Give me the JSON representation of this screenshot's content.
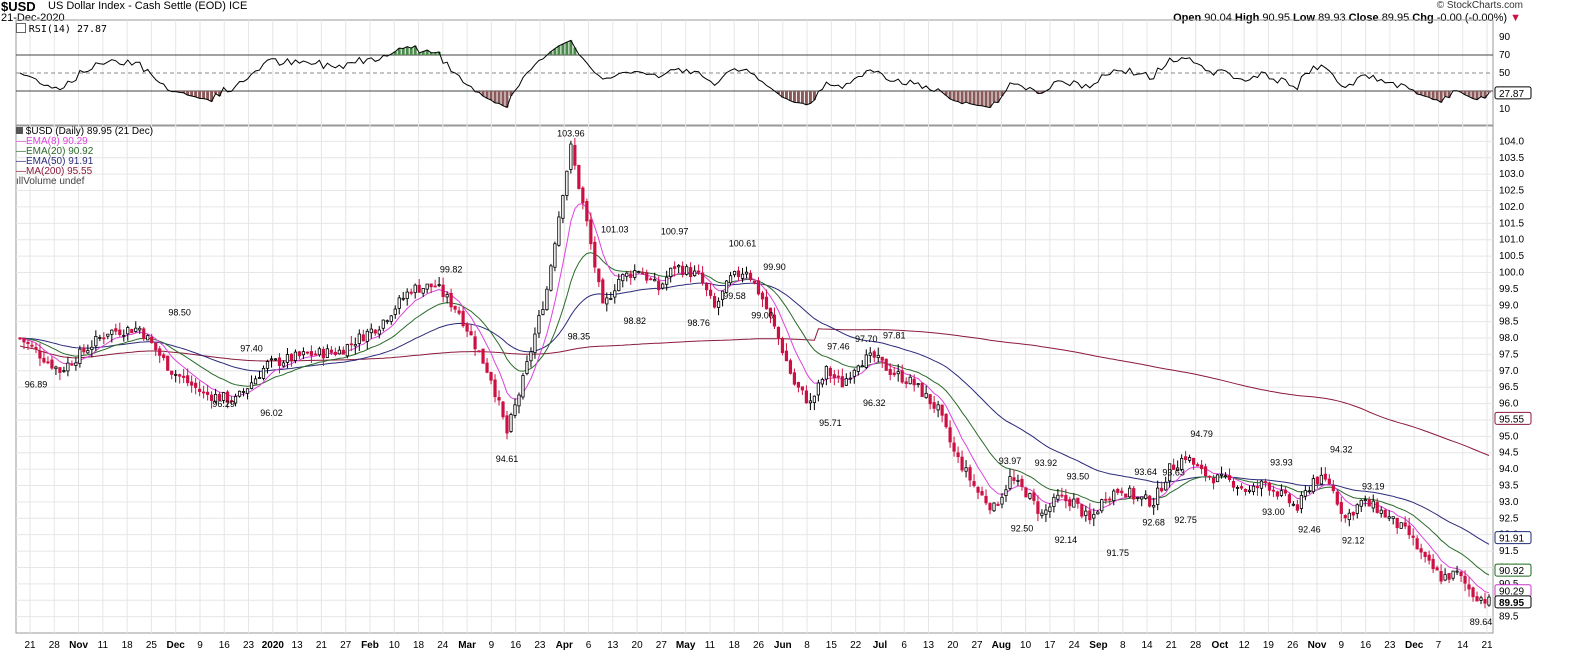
{
  "header": {
    "symbol": "$USD",
    "description": "US Dollar Index - Cash Settle (EOD)",
    "exchange": "ICE",
    "date": "21-Dec-2020",
    "brand": "© StockCharts.com",
    "open_label": "Open",
    "open": "90.04",
    "high_label": "High",
    "high": "90.95",
    "low_label": "Low",
    "low": "89.93",
    "close_label": "Close",
    "close": "89.95",
    "chg_label": "Chg",
    "chg": "-0.00 (-0.00%)"
  },
  "rsi_panel": {
    "label": "RSI(14) 27.87",
    "current": 27.87,
    "ticks": [
      10,
      30,
      50,
      70,
      90
    ],
    "levels": [
      30,
      50,
      70
    ],
    "colors": {
      "line": "#000000",
      "over": "#4a8a4a",
      "under": "#8a5a5a"
    }
  },
  "legend": {
    "main": "$USD (Daily) 89.95 (21 Dec)",
    "ema8": "EMA(8) 90.29",
    "ema20": "EMA(20) 90.92",
    "ema50": "EMA(50) 91.91",
    "ma200": "MA(200) 95.55",
    "volume": "Volume undef"
  },
  "chart_data": {
    "type": "candlestick",
    "ylim": [
      89.0,
      104.5
    ],
    "y_ticks": [
      "89.5",
      "90.0",
      "90.5",
      "91.0",
      "91.5",
      "92.0",
      "92.5",
      "93.0",
      "93.5",
      "94.0",
      "94.5",
      "95.0",
      "95.5",
      "96.0",
      "96.5",
      "97.0",
      "97.5",
      "98.0",
      "98.5",
      "99.0",
      "99.5",
      "100.0",
      "100.5",
      "101.0",
      "101.5",
      "102.0",
      "102.5",
      "103.0",
      "103.5",
      "104.0"
    ],
    "x_ticks": [
      "21",
      "28",
      "Nov",
      "11",
      "18",
      "25",
      "Dec",
      "9",
      "16",
      "23",
      "2020",
      "13",
      "21",
      "27",
      "Feb",
      "10",
      "18",
      "24",
      "Mar",
      "9",
      "16",
      "23",
      "Apr",
      "6",
      "13",
      "20",
      "27",
      "May",
      "11",
      "18",
      "26",
      "Jun",
      "8",
      "15",
      "22",
      "Jul",
      "6",
      "13",
      "20",
      "27",
      "Aug",
      "10",
      "17",
      "24",
      "Sep",
      "8",
      "14",
      "21",
      "28",
      "Oct",
      "12",
      "19",
      "26",
      "Nov",
      "9",
      "16",
      "23",
      "Dec",
      "7",
      "14",
      "21"
    ],
    "month_ticks": [
      "Nov",
      "Dec",
      "2020",
      "Feb",
      "Mar",
      "Apr",
      "May",
      "Jun",
      "Jul",
      "Aug",
      "Sep",
      "Oct",
      "Nov",
      "Dec"
    ],
    "price_keypoints": [
      [
        0,
        98.0
      ],
      [
        10,
        97.0
      ],
      [
        22,
        98.2
      ],
      [
        30,
        98.3
      ],
      [
        38,
        97.0
      ],
      [
        46,
        96.3
      ],
      [
        54,
        96.1
      ],
      [
        62,
        97.2
      ],
      [
        72,
        97.5
      ],
      [
        80,
        97.6
      ],
      [
        90,
        98.4
      ],
      [
        98,
        99.5
      ],
      [
        104,
        99.6
      ],
      [
        110,
        98.8
      ],
      [
        118,
        96.8
      ],
      [
        122,
        95.1
      ],
      [
        126,
        96.7
      ],
      [
        132,
        99.5
      ],
      [
        136,
        102.5
      ],
      [
        138,
        103.8
      ],
      [
        142,
        101.5
      ],
      [
        146,
        98.9
      ],
      [
        150,
        99.8
      ],
      [
        155,
        100.1
      ],
      [
        160,
        99.5
      ],
      [
        164,
        100.2
      ],
      [
        170,
        99.9
      ],
      [
        174,
        98.9
      ],
      [
        178,
        99.8
      ],
      [
        182,
        100.1
      ],
      [
        186,
        99.2
      ],
      [
        190,
        98.0
      ],
      [
        194,
        96.6
      ],
      [
        198,
        96.0
      ],
      [
        202,
        97.0
      ],
      [
        206,
        96.6
      ],
      [
        210,
        97.3
      ],
      [
        214,
        97.4
      ],
      [
        218,
        97.0
      ],
      [
        224,
        96.6
      ],
      [
        230,
        95.8
      ],
      [
        234,
        94.5
      ],
      [
        240,
        93.3
      ],
      [
        244,
        92.8
      ],
      [
        248,
        93.7
      ],
      [
        252,
        93.3
      ],
      [
        256,
        92.6
      ],
      [
        260,
        93.1
      ],
      [
        264,
        93.0
      ],
      [
        268,
        92.4
      ],
      [
        272,
        93.2
      ],
      [
        276,
        93.4
      ],
      [
        280,
        93.1
      ],
      [
        284,
        93.0
      ],
      [
        288,
        94.0
      ],
      [
        292,
        94.4
      ],
      [
        296,
        93.9
      ],
      [
        300,
        93.7
      ],
      [
        304,
        93.6
      ],
      [
        308,
        93.3
      ],
      [
        312,
        93.6
      ],
      [
        316,
        93.2
      ],
      [
        320,
        92.8
      ],
      [
        324,
        93.7
      ],
      [
        328,
        93.6
      ],
      [
        332,
        92.5
      ],
      [
        336,
        93.0
      ],
      [
        340,
        92.8
      ],
      [
        344,
        92.4
      ],
      [
        348,
        92.0
      ],
      [
        352,
        91.2
      ],
      [
        356,
        90.7
      ],
      [
        360,
        90.8
      ],
      [
        364,
        90.2
      ],
      [
        368,
        89.95
      ]
    ],
    "n_points": 369,
    "annotations": [
      {
        "text": "96.89",
        "i": 4,
        "v": 96.89,
        "pos": "below"
      },
      {
        "text": "98.50",
        "i": 40,
        "v": 98.5,
        "pos": "above"
      },
      {
        "text": "97.40",
        "i": 58,
        "v": 97.4,
        "pos": "above"
      },
      {
        "text": "96.29",
        "i": 51,
        "v": 96.29,
        "pos": "below"
      },
      {
        "text": "96.02",
        "i": 63,
        "v": 96.02,
        "pos": "below"
      },
      {
        "text": "99.82",
        "i": 108,
        "v": 99.82,
        "pos": "above"
      },
      {
        "text": "94.61",
        "i": 122,
        "v": 94.61,
        "pos": "below"
      },
      {
        "text": "103.96",
        "i": 138,
        "v": 103.96,
        "pos": "above"
      },
      {
        "text": "98.35",
        "i": 140,
        "v": 98.35,
        "pos": "below"
      },
      {
        "text": "101.03",
        "i": 149,
        "v": 101.03,
        "pos": "above"
      },
      {
        "text": "98.82",
        "i": 154,
        "v": 98.82,
        "pos": "below"
      },
      {
        "text": "100.97",
        "i": 164,
        "v": 100.97,
        "pos": "above"
      },
      {
        "text": "98.76",
        "i": 170,
        "v": 98.76,
        "pos": "below"
      },
      {
        "text": "100.61",
        "i": 181,
        "v": 100.61,
        "pos": "above"
      },
      {
        "text": "99.58",
        "i": 179,
        "v": 99.58,
        "pos": "below"
      },
      {
        "text": "99.90",
        "i": 189,
        "v": 99.9,
        "pos": "above"
      },
      {
        "text": "99.00",
        "i": 186,
        "v": 99.0,
        "pos": "below"
      },
      {
        "text": "97.70",
        "i": 212,
        "v": 97.7,
        "pos": "above"
      },
      {
        "text": "97.81",
        "i": 219,
        "v": 97.81,
        "pos": "above"
      },
      {
        "text": "97.46",
        "i": 205,
        "v": 97.46,
        "pos": "above"
      },
      {
        "text": "95.71",
        "i": 203,
        "v": 95.71,
        "pos": "below"
      },
      {
        "text": "96.32",
        "i": 214,
        "v": 96.32,
        "pos": "below"
      },
      {
        "text": "93.97",
        "i": 248,
        "v": 93.97,
        "pos": "above"
      },
      {
        "text": "93.92",
        "i": 257,
        "v": 93.92,
        "pos": "above"
      },
      {
        "text": "92.50",
        "i": 251,
        "v": 92.5,
        "pos": "below"
      },
      {
        "text": "93.50",
        "i": 265,
        "v": 93.5,
        "pos": "above"
      },
      {
        "text": "92.14",
        "i": 262,
        "v": 92.14,
        "pos": "below"
      },
      {
        "text": "91.75",
        "i": 275,
        "v": 91.75,
        "pos": "below"
      },
      {
        "text": "93.64",
        "i": 282,
        "v": 93.64,
        "pos": "above"
      },
      {
        "text": "93.63",
        "i": 289,
        "v": 93.63,
        "pos": "above"
      },
      {
        "text": "92.68",
        "i": 284,
        "v": 92.68,
        "pos": "below"
      },
      {
        "text": "92.75",
        "i": 292,
        "v": 92.75,
        "pos": "below"
      },
      {
        "text": "94.79",
        "i": 296,
        "v": 94.79,
        "pos": "above"
      },
      {
        "text": "93.93",
        "i": 316,
        "v": 93.93,
        "pos": "above"
      },
      {
        "text": "93.00",
        "i": 314,
        "v": 93.0,
        "pos": "below"
      },
      {
        "text": "92.46",
        "i": 323,
        "v": 92.46,
        "pos": "below"
      },
      {
        "text": "94.32",
        "i": 331,
        "v": 94.32,
        "pos": "above"
      },
      {
        "text": "93.19",
        "i": 339,
        "v": 93.19,
        "pos": "above"
      },
      {
        "text": "92.12",
        "i": 334,
        "v": 92.12,
        "pos": "below"
      },
      {
        "text": "89.64",
        "i": 366,
        "v": 89.64,
        "pos": "below"
      }
    ],
    "last_value_tags": [
      {
        "text": "95.55",
        "v": 95.55,
        "color": "#8b1a3a"
      },
      {
        "text": "91.91",
        "v": 91.91,
        "color": "#1a2a7a"
      },
      {
        "text": "90.92",
        "v": 90.92,
        "color": "#1a6a1a"
      },
      {
        "text": "90.29",
        "v": 90.29,
        "color": "#cc33cc"
      },
      {
        "text": "89.95",
        "v": 89.95,
        "color": "#000000"
      }
    ],
    "colors": {
      "up": "#000000",
      "down": "#cc1144",
      "ema8": "#dd44dd",
      "ema20": "#2a6a2a",
      "ema50": "#2a2a7a",
      "ma200": "#8b1a3a",
      "grid": "#e6e6e6"
    }
  }
}
